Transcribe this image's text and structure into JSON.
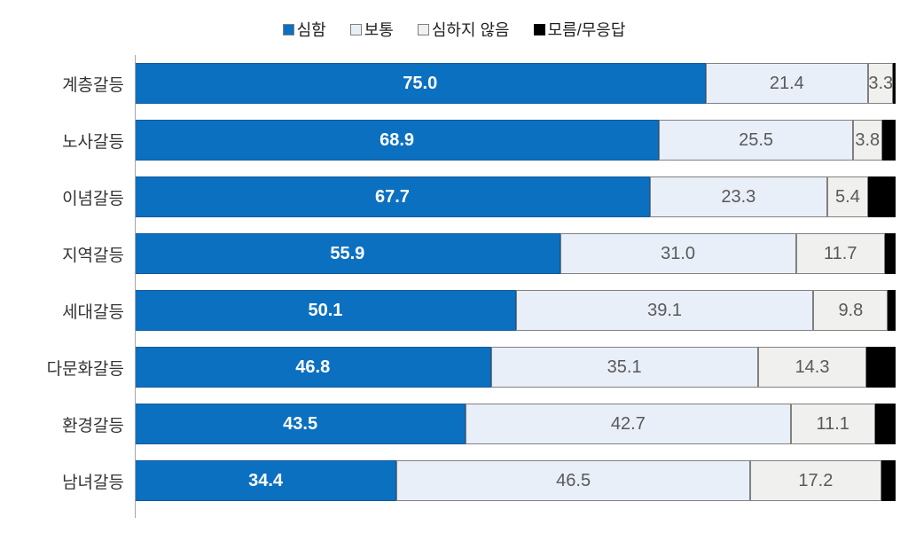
{
  "chart_data": {
    "type": "bar",
    "orientation": "horizontal",
    "stacked": true,
    "unit": "%",
    "xlim": [
      0,
      100
    ],
    "grid": false,
    "legend_position": "top",
    "categories": [
      "계층갈등",
      "노사갈등",
      "이념갈등",
      "지역갈등",
      "세대갈등",
      "다문화갈등",
      "환경갈등",
      "남녀갈등"
    ],
    "series": [
      {
        "name": "심함",
        "key": "severe",
        "color": "#0c70c0",
        "label_color": "#ffffff",
        "values": [
          75.0,
          68.9,
          67.7,
          55.9,
          50.1,
          46.8,
          43.5,
          34.4
        ],
        "labels": [
          "75.0",
          "68.9",
          "67.7",
          "55.9",
          "50.1",
          "46.8",
          "43.5",
          "34.4"
        ]
      },
      {
        "name": "보통",
        "key": "moderate",
        "color": "#e9eff8",
        "label_color": "#595959",
        "values": [
          21.4,
          25.5,
          23.3,
          31.0,
          39.1,
          35.1,
          42.7,
          46.5
        ],
        "labels": [
          "21.4",
          "25.5",
          "23.3",
          "31.0",
          "39.1",
          "35.1",
          "42.7",
          "46.5"
        ]
      },
      {
        "name": "심하지 않음",
        "key": "not-severe",
        "color": "#f0f0ee",
        "label_color": "#595959",
        "values": [
          3.3,
          3.8,
          5.4,
          11.7,
          9.8,
          14.3,
          11.1,
          17.2
        ],
        "labels": [
          "3.3",
          "3.8",
          "5.4",
          "11.7",
          "9.8",
          "14.3",
          "11.1",
          "17.2"
        ]
      },
      {
        "name": "모름/무응답",
        "key": "no-answer",
        "color": "#000000",
        "values_estimated_from_remainder": true,
        "values": [
          0.3,
          1.8,
          3.6,
          1.4,
          1.0,
          3.8,
          2.7,
          1.9
        ],
        "labels": null
      }
    ]
  }
}
